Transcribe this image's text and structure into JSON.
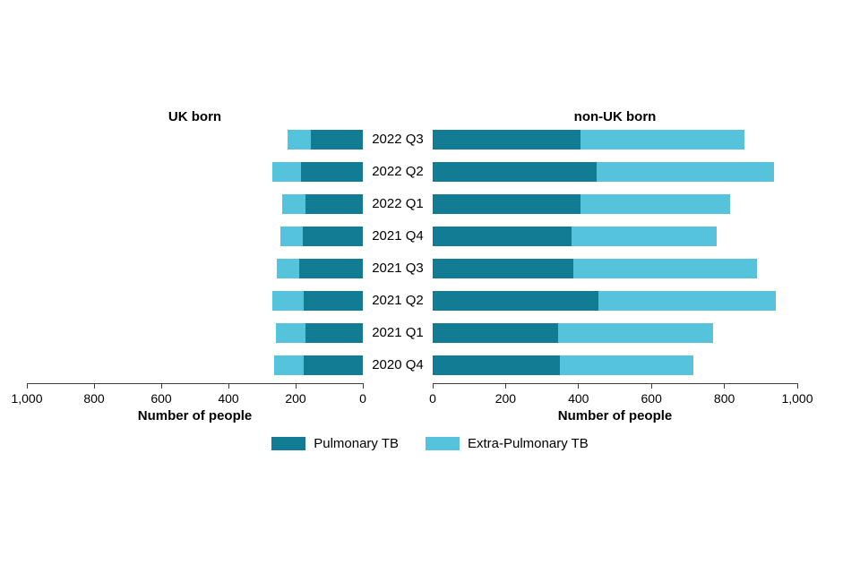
{
  "chart_data": {
    "type": "bar",
    "variant": "butterfly-stacked-horizontal",
    "categories": [
      "2022 Q3",
      "2022 Q2",
      "2022 Q1",
      "2021 Q4",
      "2021 Q3",
      "2021 Q2",
      "2021 Q1",
      "2020 Q4"
    ],
    "panels": [
      {
        "title": "UK born",
        "direction": "left",
        "xlabel": "Number of people",
        "xlim": [
          0,
          1000
        ],
        "ticks": [
          "1,000",
          "800",
          "600",
          "400",
          "200",
          "0"
        ],
        "tick_values": [
          1000,
          800,
          600,
          400,
          200,
          0
        ],
        "series": [
          {
            "name": "Pulmonary TB",
            "color": "#117c94",
            "values": [
              155,
              185,
              170,
              180,
              190,
              175,
              170,
              175
            ]
          },
          {
            "name": "Extra-Pulmonary TB",
            "color": "#55c3dc",
            "values": [
              70,
              85,
              70,
              65,
              65,
              95,
              90,
              90
            ]
          }
        ]
      },
      {
        "title": "non-UK born",
        "direction": "right",
        "xlabel": "Number of people",
        "xlim": [
          0,
          1000
        ],
        "ticks": [
          "0",
          "200",
          "400",
          "600",
          "800",
          "1,000"
        ],
        "tick_values": [
          0,
          200,
          400,
          600,
          800,
          1000
        ],
        "series": [
          {
            "name": "Pulmonary TB",
            "color": "#117c94",
            "values": [
              405,
              450,
              405,
              380,
              385,
              455,
              345,
              350
            ]
          },
          {
            "name": "Extra-Pulmonary TB",
            "color": "#55c3dc",
            "values": [
              450,
              485,
              410,
              400,
              505,
              485,
              425,
              365
            ]
          }
        ]
      }
    ],
    "legend": [
      {
        "label": "Pulmonary TB",
        "color": "#117c94"
      },
      {
        "label": "Extra-Pulmonary TB",
        "color": "#55c3dc"
      }
    ],
    "layout_hints": {
      "grid": "off",
      "legend_position": "bottom-center",
      "axis_color": "#3f3f3f",
      "background": "#ffffff"
    }
  }
}
